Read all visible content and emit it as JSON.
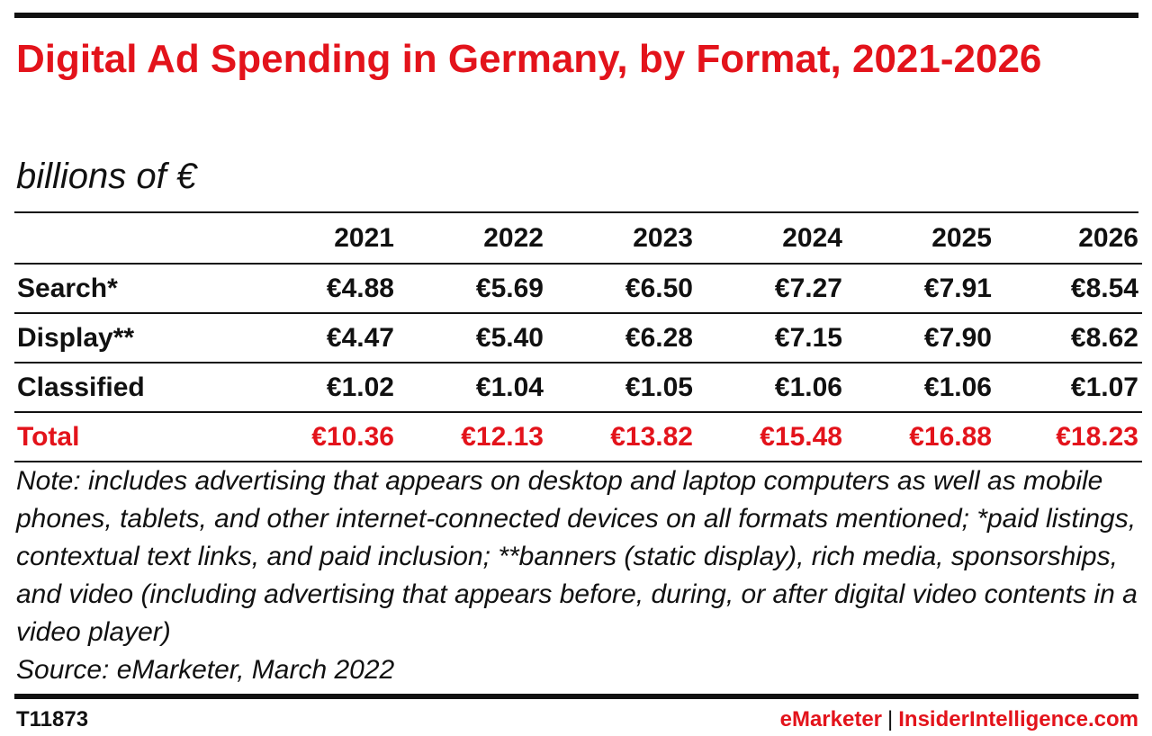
{
  "chart_data": {
    "type": "table",
    "title": "Digital Ad Spending in Germany, by Format, 2021-2026",
    "subtitle": "billions of €",
    "columns": [
      "2021",
      "2022",
      "2023",
      "2024",
      "2025",
      "2026"
    ],
    "rows": [
      {
        "label": "Search*",
        "values": [
          "€4.88",
          "€5.69",
          "€6.50",
          "€7.27",
          "€7.91",
          "€8.54"
        ]
      },
      {
        "label": "Display**",
        "values": [
          "€4.47",
          "€5.40",
          "€6.28",
          "€7.15",
          "€7.90",
          "€8.62"
        ]
      },
      {
        "label": "Classified",
        "values": [
          "€1.02",
          "€1.04",
          "€1.05",
          "€1.06",
          "€1.06",
          "€1.07"
        ]
      },
      {
        "label": "Total",
        "values": [
          "€10.36",
          "€12.13",
          "€13.82",
          "€15.48",
          "€16.88",
          "€18.23"
        ]
      }
    ],
    "note": "Note: includes advertising that appears on desktop and laptop computers as well as mobile phones, tablets, and other internet-connected devices on all formats mentioned; *paid listings, contextual text links, and paid inclusion; **banners (static display), rich media, sponsorships, and video (including advertising that appears before, during, or after digital video contents in a video player)",
    "source": "Source: eMarketer, March 2022"
  },
  "footer": {
    "chart_id": "T11873",
    "brand_left": "eMarketer",
    "separator": "|",
    "brand_right": "InsiderIntelligence.com"
  },
  "colors": {
    "accent": "#e3131b",
    "text": "#111111",
    "background": "#ffffff"
  }
}
